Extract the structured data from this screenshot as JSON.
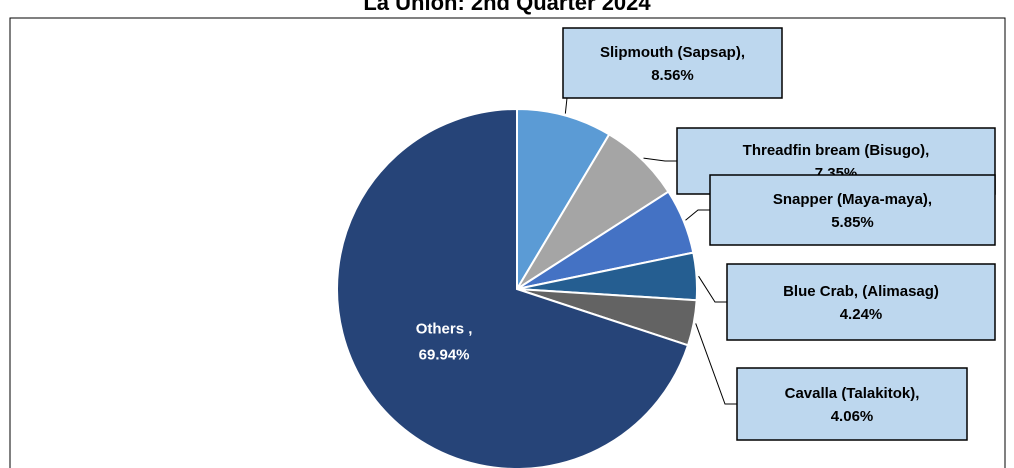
{
  "chart_data": {
    "type": "pie",
    "title": "La Union: 2nd Quarter 2024",
    "categories": [
      "Slipmouth (Sapsap),",
      "Threadfin bream (Bisugo),",
      "Snapper (Maya-maya),",
      "Blue Crab, (Alimasag)",
      "Cavalla (Talakitok),",
      "Others ,"
    ],
    "values": [
      8.56,
      7.35,
      5.85,
      4.24,
      4.06,
      69.94
    ],
    "value_labels": [
      "8.56%",
      "7.35%",
      "5.85%",
      "4.24%",
      "4.06%",
      "69.94%"
    ],
    "colors": [
      "#5b9bd5",
      "#a5a5a5",
      "#4472c4",
      "#255e91",
      "#636363",
      "#264478"
    ]
  }
}
